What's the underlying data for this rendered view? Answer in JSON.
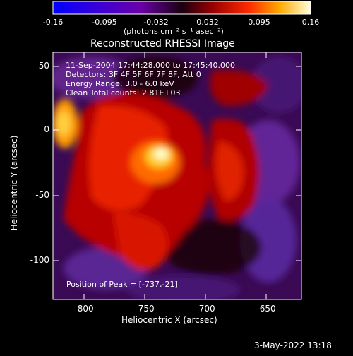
{
  "colorbar": {
    "ticks": [
      "-0.16",
      "-0.095",
      "-0.032",
      "0.032",
      "0.095",
      "0.16"
    ],
    "units": "(photons cm⁻² s⁻¹ asec⁻²)"
  },
  "image": {
    "title": "Reconstructed RHESSI Image",
    "info_lines": [
      "11-Sep-2004 17:44:28.000 to 17:45:40.000",
      "Detectors: 3F 4F 5F 6F 7F 8F, Att 0",
      "Energy Range: 3.0 - 6.0 keV",
      "Clean    Total counts: 2.81E+03"
    ],
    "peak_label": "Position of Peak = [-737,-21]",
    "xlabel": "Heliocentric X (arcsec)",
    "ylabel": "Heliocentric Y (arcsec)",
    "xticks": [
      "-800",
      "-750",
      "-700",
      "-650"
    ],
    "yticks": [
      "50",
      "0",
      "-50",
      "-100"
    ],
    "timestamp": "3-May-2022 13:18"
  }
}
